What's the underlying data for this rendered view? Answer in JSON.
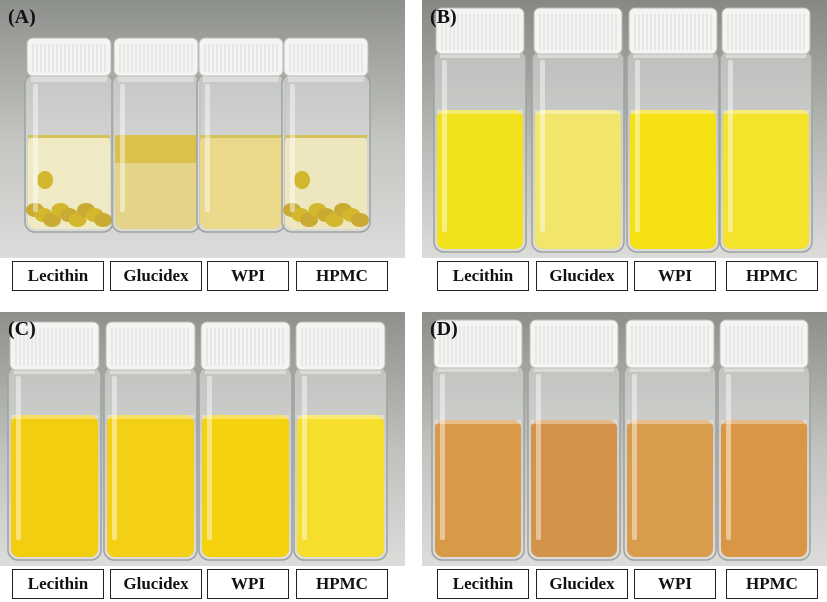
{
  "panels": [
    {
      "letter": "(A)",
      "labels": [
        "Lecithin",
        "Glucidex",
        "WPI",
        "HPMC"
      ],
      "liquid_colors": [
        "#efeac4",
        "#e3d48a",
        "#ead98a",
        "#eee6bd"
      ],
      "scene": "phase-separated"
    },
    {
      "letter": "(B)",
      "labels": [
        "Lecithin",
        "Glucidex",
        "WPI",
        "HPMC"
      ],
      "liquid_colors": [
        "#f2e21e",
        "#f1e56c",
        "#f5e011",
        "#f5e22a"
      ],
      "scene": "emulsion"
    },
    {
      "letter": "(C)",
      "labels": [
        "Lecithin",
        "Glucidex",
        "WPI",
        "HPMC"
      ],
      "liquid_colors": [
        "#f3cd10",
        "#f3d015",
        "#f5d20e",
        "#f6de2c"
      ],
      "scene": "emulsion"
    },
    {
      "letter": "(D)",
      "labels": [
        "Lecithin",
        "Glucidex",
        "WPI",
        "HPMC"
      ],
      "liquid_colors": [
        "#d99a48",
        "#d4934a",
        "#d99c4d",
        "#d99745"
      ],
      "scene": "emulsion"
    }
  ]
}
